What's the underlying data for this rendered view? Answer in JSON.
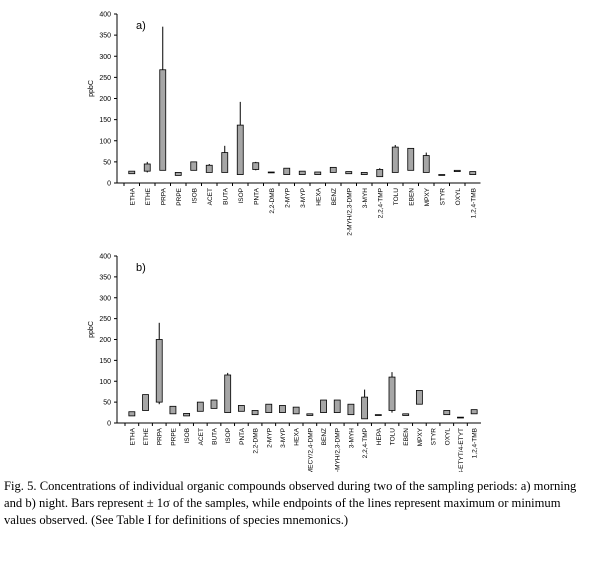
{
  "chart_data": [
    {
      "type": "range-box",
      "panel_label": "a)",
      "ylabel": "ppbC",
      "categories": [
        "ETHA",
        "ETHE",
        "PRPA",
        "PRPE",
        "ISOB",
        "ACET",
        "BUTA",
        "ISOP",
        "PNTA",
        "2,2-DMB",
        "2-MYP",
        "3-MYP",
        "HEXA",
        "BENZ",
        "2-MYH/2,3-DMP",
        "3-MYH",
        "2,2,4-TMP",
        "TOLU",
        "EBEN",
        "MPXY",
        "STYR",
        "OXYL",
        "1,2,4-TMB"
      ],
      "low": [
        22,
        28,
        30,
        18,
        30,
        25,
        25,
        20,
        32,
        24,
        20,
        20,
        20,
        25,
        22,
        20,
        15,
        25,
        30,
        25,
        18,
        27,
        20
      ],
      "high": [
        28,
        45,
        268,
        25,
        50,
        42,
        72,
        137,
        48,
        26,
        35,
        28,
        26,
        37,
        27,
        25,
        32,
        85,
        82,
        65,
        20,
        30,
        27
      ],
      "max": [
        null,
        50,
        370,
        null,
        null,
        45,
        88,
        192,
        50,
        null,
        null,
        null,
        null,
        null,
        null,
        null,
        35,
        90,
        null,
        72,
        null,
        null,
        null
      ],
      "min": [
        null,
        25,
        null,
        null,
        null,
        null,
        null,
        null,
        30,
        null,
        null,
        null,
        null,
        null,
        null,
        null,
        null,
        null,
        null,
        null,
        null,
        null,
        null
      ],
      "color": "#a6a6a6",
      "ylim": [
        0,
        400
      ],
      "yticks": [
        0,
        50,
        100,
        150,
        200,
        250,
        300,
        350,
        400
      ]
    },
    {
      "type": "range-box",
      "panel_label": "b)",
      "ylabel": "ppbC",
      "categories": [
        "ETHA",
        "ETHE",
        "PRPA",
        "PRPE",
        "ISOB",
        "ACET",
        "BUTA",
        "ISOP",
        "PNTA",
        "2,2-DMB",
        "2-MYP",
        "3-MYP",
        "HEXA",
        "MECY/2,4-DMP",
        "BENZ",
        "2-MYH/2,3-DMP",
        "3-MYH",
        "2,2,4-TMP",
        "HEPA",
        "TOLU",
        "EBEN",
        "MPXY",
        "STYR",
        "OXYL",
        "3-ETYT/4-ETYT",
        "1,2,4-TMB"
      ],
      "low": [
        17,
        30,
        50,
        22,
        17,
        28,
        35,
        25,
        28,
        20,
        25,
        25,
        22,
        18,
        25,
        25,
        20,
        10,
        18,
        30,
        18,
        45,
        null,
        20,
        12,
        22
      ],
      "high": [
        27,
        68,
        200,
        40,
        23,
        50,
        55,
        115,
        42,
        30,
        45,
        42,
        38,
        22,
        55,
        55,
        45,
        62,
        20,
        110,
        22,
        78,
        null,
        30,
        14,
        32
      ],
      "max": [
        null,
        null,
        240,
        null,
        null,
        null,
        null,
        120,
        null,
        null,
        null,
        null,
        null,
        null,
        null,
        null,
        null,
        80,
        null,
        122,
        null,
        null,
        null,
        null,
        null,
        null
      ],
      "min": [
        null,
        null,
        45,
        null,
        null,
        null,
        null,
        null,
        null,
        null,
        null,
        null,
        null,
        null,
        null,
        null,
        null,
        null,
        null,
        25,
        null,
        null,
        null,
        null,
        null,
        null
      ],
      "color": "#a6a6a6",
      "ylim": [
        0,
        400
      ],
      "yticks": [
        0,
        50,
        100,
        150,
        200,
        250,
        300,
        350,
        400
      ]
    }
  ],
  "caption": "Fig. 5. Concentrations of individual organic compounds observed during two of the sampling periods: a) morning and b) night. Bars represent ± 1σ of the samples, while endpoints of the lines represent maximum or minimum values observed. (See Table I for definitions of species mnemonics.)"
}
